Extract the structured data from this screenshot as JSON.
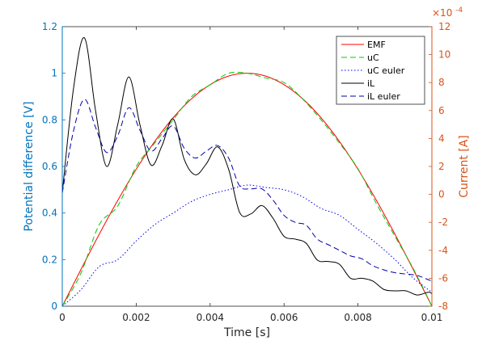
{
  "chart_data": {
    "type": "line",
    "xlabel": "Time [s]",
    "ylabel_left": "Potential difference [V]",
    "ylabel_right": "Current [A]",
    "right_exponent": "×10^-4",
    "right_exponent_prefix": "×10",
    "right_exponent_power": "-4",
    "xlim": [
      0,
      0.01
    ],
    "ylim_left": [
      0,
      1.2
    ],
    "ylim_right": [
      -8,
      12
    ],
    "x_ticks": [
      0,
      0.002,
      0.004,
      0.006,
      0.008,
      0.01
    ],
    "x_tick_labels": [
      "0",
      "0.002",
      "0.004",
      "0.006",
      "0.008",
      "0.01"
    ],
    "y_left_ticks": [
      0,
      0.2,
      0.4,
      0.6,
      0.8,
      1.0,
      1.2
    ],
    "y_left_tick_labels": [
      "0",
      "0.2",
      "0.4",
      "0.6",
      "0.8",
      "1",
      "1.2"
    ],
    "y_right_ticks": [
      -8,
      -6,
      -4,
      -2,
      0,
      2,
      4,
      6,
      8,
      10,
      12
    ],
    "y_right_tick_labels": [
      "-8",
      "-6",
      "-4",
      "-2",
      "0",
      "2",
      "4",
      "6",
      "8",
      "10",
      "12"
    ],
    "grid": false,
    "legend_position": "top-right",
    "colors": {
      "left_axis": "#0072BD",
      "right_axis": "#D95319"
    },
    "series": [
      {
        "name": "EMF",
        "axis": "left",
        "color": "#ff0000",
        "dash": "solid",
        "x": [
          0,
          0.0005,
          0.001,
          0.0015,
          0.002,
          0.0025,
          0.003,
          0.0035,
          0.004,
          0.0045,
          0.005,
          0.0055,
          0.006,
          0.0065,
          0.007,
          0.0075,
          0.008,
          0.0085,
          0.009,
          0.0095,
          0.01
        ],
        "y": [
          0,
          0.156,
          0.309,
          0.454,
          0.588,
          0.707,
          0.809,
          0.891,
          0.951,
          0.988,
          1.0,
          0.988,
          0.951,
          0.891,
          0.809,
          0.707,
          0.588,
          0.454,
          0.309,
          0.156,
          0
        ]
      },
      {
        "name": "uC",
        "axis": "left",
        "color": "#00cc00",
        "dash": "dashed",
        "x": [
          0,
          0.0005,
          0.001,
          0.0015,
          0.002,
          0.0025,
          0.003,
          0.0035,
          0.004,
          0.0045,
          0.005,
          0.0055,
          0.006,
          0.0065,
          0.007,
          0.0075,
          0.008,
          0.0085,
          0.009,
          0.0095,
          0.01
        ],
        "y": [
          0,
          0.14,
          0.35,
          0.43,
          0.6,
          0.7,
          0.8,
          0.9,
          0.95,
          1.0,
          1.0,
          0.98,
          0.96,
          0.89,
          0.8,
          0.7,
          0.59,
          0.44,
          0.3,
          0.16,
          0
        ]
      },
      {
        "name": "uC euler",
        "axis": "left",
        "color": "#0000ff",
        "dash": "dotted",
        "x": [
          0,
          0.0005,
          0.001,
          0.0015,
          0.002,
          0.0025,
          0.003,
          0.0035,
          0.004,
          0.0045,
          0.005,
          0.0055,
          0.006,
          0.0065,
          0.007,
          0.0075,
          0.008,
          0.0085,
          0.009,
          0.0095,
          0.01
        ],
        "y": [
          0,
          0.07,
          0.17,
          0.2,
          0.28,
          0.35,
          0.4,
          0.45,
          0.48,
          0.5,
          0.52,
          0.51,
          0.5,
          0.47,
          0.42,
          0.39,
          0.33,
          0.27,
          0.2,
          0.12,
          0.06
        ]
      },
      {
        "name": "iL",
        "axis": "right",
        "color": "#000000",
        "dash": "solid",
        "x": [
          0,
          0.0003,
          0.0006,
          0.0009,
          0.0012,
          0.0015,
          0.0018,
          0.0021,
          0.0024,
          0.0027,
          0.003,
          0.0033,
          0.0036,
          0.0039,
          0.0042,
          0.0045,
          0.0048,
          0.0051,
          0.0054,
          0.0057,
          0.006,
          0.0063,
          0.0066,
          0.0069,
          0.0072,
          0.0075,
          0.0078,
          0.0081,
          0.0084,
          0.0087,
          0.009,
          0.0093,
          0.0096,
          0.0099,
          0.01
        ],
        "y": [
          0.1,
          7.5,
          11.2,
          6.0,
          2.0,
          5.0,
          8.4,
          5.0,
          2.1,
          3.5,
          5.4,
          2.5,
          1.4,
          2.2,
          3.4,
          1.8,
          -1.3,
          -1.4,
          -0.8,
          -1.7,
          -3.0,
          -3.2,
          -3.5,
          -4.7,
          -4.8,
          -5.0,
          -6.0,
          -6.0,
          -6.2,
          -6.8,
          -6.9,
          -6.9,
          -7.2,
          -7.0,
          -7.1
        ]
      },
      {
        "name": "iL euler",
        "axis": "right",
        "color": "#0000aa",
        "dash": "dashed",
        "x": [
          0,
          0.0003,
          0.0006,
          0.0009,
          0.0012,
          0.0015,
          0.0018,
          0.0021,
          0.0024,
          0.0027,
          0.003,
          0.0033,
          0.0036,
          0.0039,
          0.0042,
          0.0045,
          0.0048,
          0.0051,
          0.0054,
          0.0057,
          0.006,
          0.0063,
          0.0066,
          0.0069,
          0.0072,
          0.0075,
          0.0078,
          0.0081,
          0.0084,
          0.0087,
          0.009,
          0.0093,
          0.0096,
          0.0099,
          0.01
        ],
        "y": [
          0.1,
          4.5,
          6.8,
          4.8,
          3.0,
          4.2,
          6.2,
          4.6,
          3.1,
          4.0,
          4.9,
          3.3,
          2.6,
          3.1,
          3.5,
          2.6,
          0.6,
          0.4,
          0.4,
          -0.4,
          -1.5,
          -2.0,
          -2.2,
          -3.2,
          -3.6,
          -4.0,
          -4.4,
          -4.6,
          -5.1,
          -5.4,
          -5.6,
          -5.7,
          -5.8,
          -6.1,
          -6.2
        ]
      }
    ]
  }
}
